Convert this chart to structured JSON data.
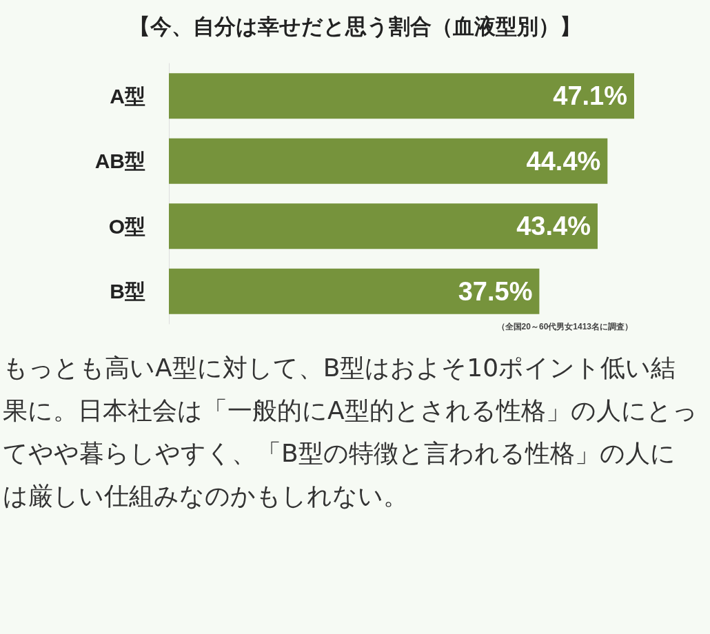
{
  "chart_data": {
    "type": "bar",
    "orientation": "horizontal",
    "title": "【今、自分は幸せだと思う割合（血液型別）】",
    "categories": [
      "A型",
      "AB型",
      "O型",
      "B型"
    ],
    "values": [
      47.1,
      44.4,
      43.4,
      37.5
    ],
    "value_labels": [
      "47.1%",
      "44.4%",
      "43.4%",
      "37.5%"
    ],
    "color": "#76933c",
    "annotations": [
      "（全国20～60代男女1413名に調査）",
      "もっとも高いA型に対して、B型はおよそ10ポイント低い結果に。日本社会は「一般的にA型的とされる性格」の人にとってやや暮らしやすく、「B型の特徴と言われる性格」の人には厳しい仕組みなのかもしれない。"
    ]
  }
}
